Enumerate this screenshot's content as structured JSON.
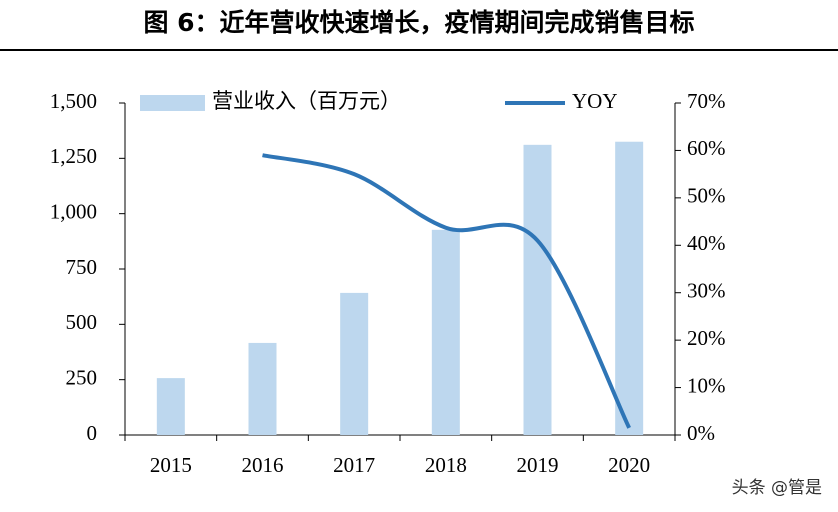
{
  "chart_data": {
    "type": "bar-line",
    "title": "图 6：近年营收快速增长，疫情期间完成销售目标",
    "categories": [
      "2015",
      "2016",
      "2017",
      "2018",
      "2019",
      "2020"
    ],
    "series": [
      {
        "name": "营业收入（百万元）",
        "color": "#bdd7ee",
        "values": [
          257,
          416,
          642,
          927,
          1311,
          1325
        ]
      },
      {
        "name": "YOY",
        "color": "#2e75b6",
        "axis": "y2",
        "values": [
          null,
          59,
          55,
          43.7,
          41,
          1.5
        ]
      }
    ],
    "ylim": [
      0,
      1500
    ],
    "yticks": [
      0,
      250,
      500,
      750,
      {
        "value": 1000,
        "label": "1,000"
      },
      {
        "value": 1250,
        "label": "1,250"
      },
      {
        "value": 1500,
        "label": "1,500"
      }
    ],
    "y2lim": [
      0,
      70
    ],
    "y2ticks": [
      {
        "value": 0,
        "label": "0%"
      },
      {
        "value": 10,
        "label": "10%"
      },
      {
        "value": 20,
        "label": "20%"
      },
      {
        "value": 30,
        "label": "30%"
      },
      {
        "value": 40,
        "label": "40%"
      },
      {
        "value": 50,
        "label": "50%"
      },
      {
        "value": 60,
        "label": "60%"
      },
      {
        "value": 70,
        "label": "70%"
      }
    ],
    "watermark": "头条 @管是"
  }
}
